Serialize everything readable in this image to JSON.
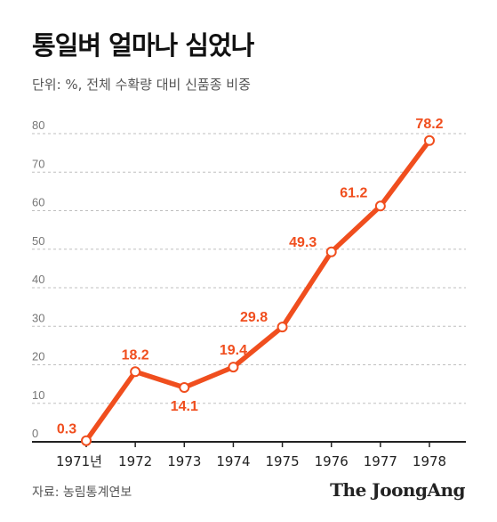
{
  "header": {
    "title": "통일벼 얼마나 심었나",
    "subtitle": "단위: %, 전체 수확량 대비 신품종 비중"
  },
  "footer": {
    "source": "자료: 농림통계연보",
    "logo": "The JoongAng"
  },
  "colors": {
    "line": "#f04e1e",
    "grid": "#bfbfbf",
    "axis": "#222222",
    "tick_text": "#777777"
  },
  "chart_data": {
    "type": "line",
    "title": "통일벼 얼마나 심었나",
    "subtitle": "단위: %, 전체 수확량 대비 신품종 비중",
    "categories": [
      "1971년",
      "1972",
      "1973",
      "1974",
      "1975",
      "1976",
      "1977",
      "1978"
    ],
    "values": [
      0.3,
      18.2,
      14.1,
      19.4,
      29.8,
      49.3,
      61.2,
      78.2
    ],
    "data_labels": [
      "0.3",
      "18.2",
      "14.1",
      "19.4",
      "29.8",
      "49.3",
      "61.2",
      "78.2"
    ],
    "ylim": [
      0,
      80
    ],
    "yticks": [
      0,
      10,
      20,
      30,
      40,
      50,
      60,
      70,
      80
    ],
    "grid": true,
    "legend": "none"
  }
}
